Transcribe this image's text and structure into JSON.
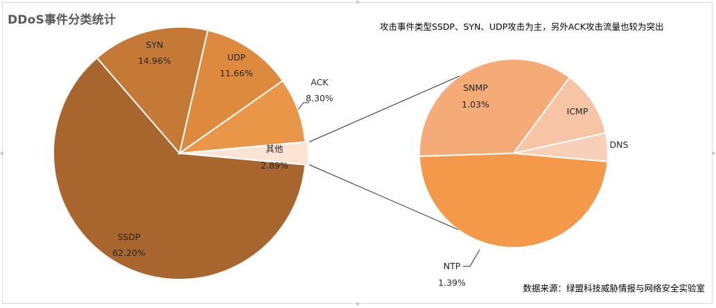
{
  "chart": {
    "title": "DDoS事件分类统计",
    "note": "攻击事件类型SSDP、SYN、UDP攻击为主，另外ACK攻击流量也较为突出",
    "source": "数据来源：绿盟科技威胁情报与网络安全实验室"
  },
  "chart_data": {
    "type": "pie",
    "subtype": "pie-of-pie",
    "title": "DDoS事件分类统计",
    "main_pie": [
      {
        "label": "SSDP",
        "value": 62.2,
        "display": "62.20%",
        "color": "#a9652e"
      },
      {
        "label": "SYN",
        "value": 14.96,
        "display": "14.96%",
        "color": "#c57937"
      },
      {
        "label": "UDP",
        "value": 11.66,
        "display": "11.66%",
        "color": "#dd8a3f"
      },
      {
        "label": "ACK",
        "value": 8.3,
        "display": "8.30%",
        "color": "#ea9649"
      },
      {
        "label": "其他",
        "value": 2.89,
        "display": "2.89%",
        "color": "#fce3d4"
      }
    ],
    "secondary_pie": [
      {
        "label": "SNMP",
        "value": 1.03,
        "display": "1.03%",
        "color": "#f4ab78"
      },
      {
        "label": "ICMP",
        "value": 0.33,
        "display": "",
        "color": "#f7c4a6"
      },
      {
        "label": "DNS",
        "value": 0.14,
        "display": "",
        "color": "#f8cfb8"
      },
      {
        "label": "NTP",
        "value": 1.39,
        "display": "1.39%",
        "color": "#f4994a"
      }
    ]
  }
}
